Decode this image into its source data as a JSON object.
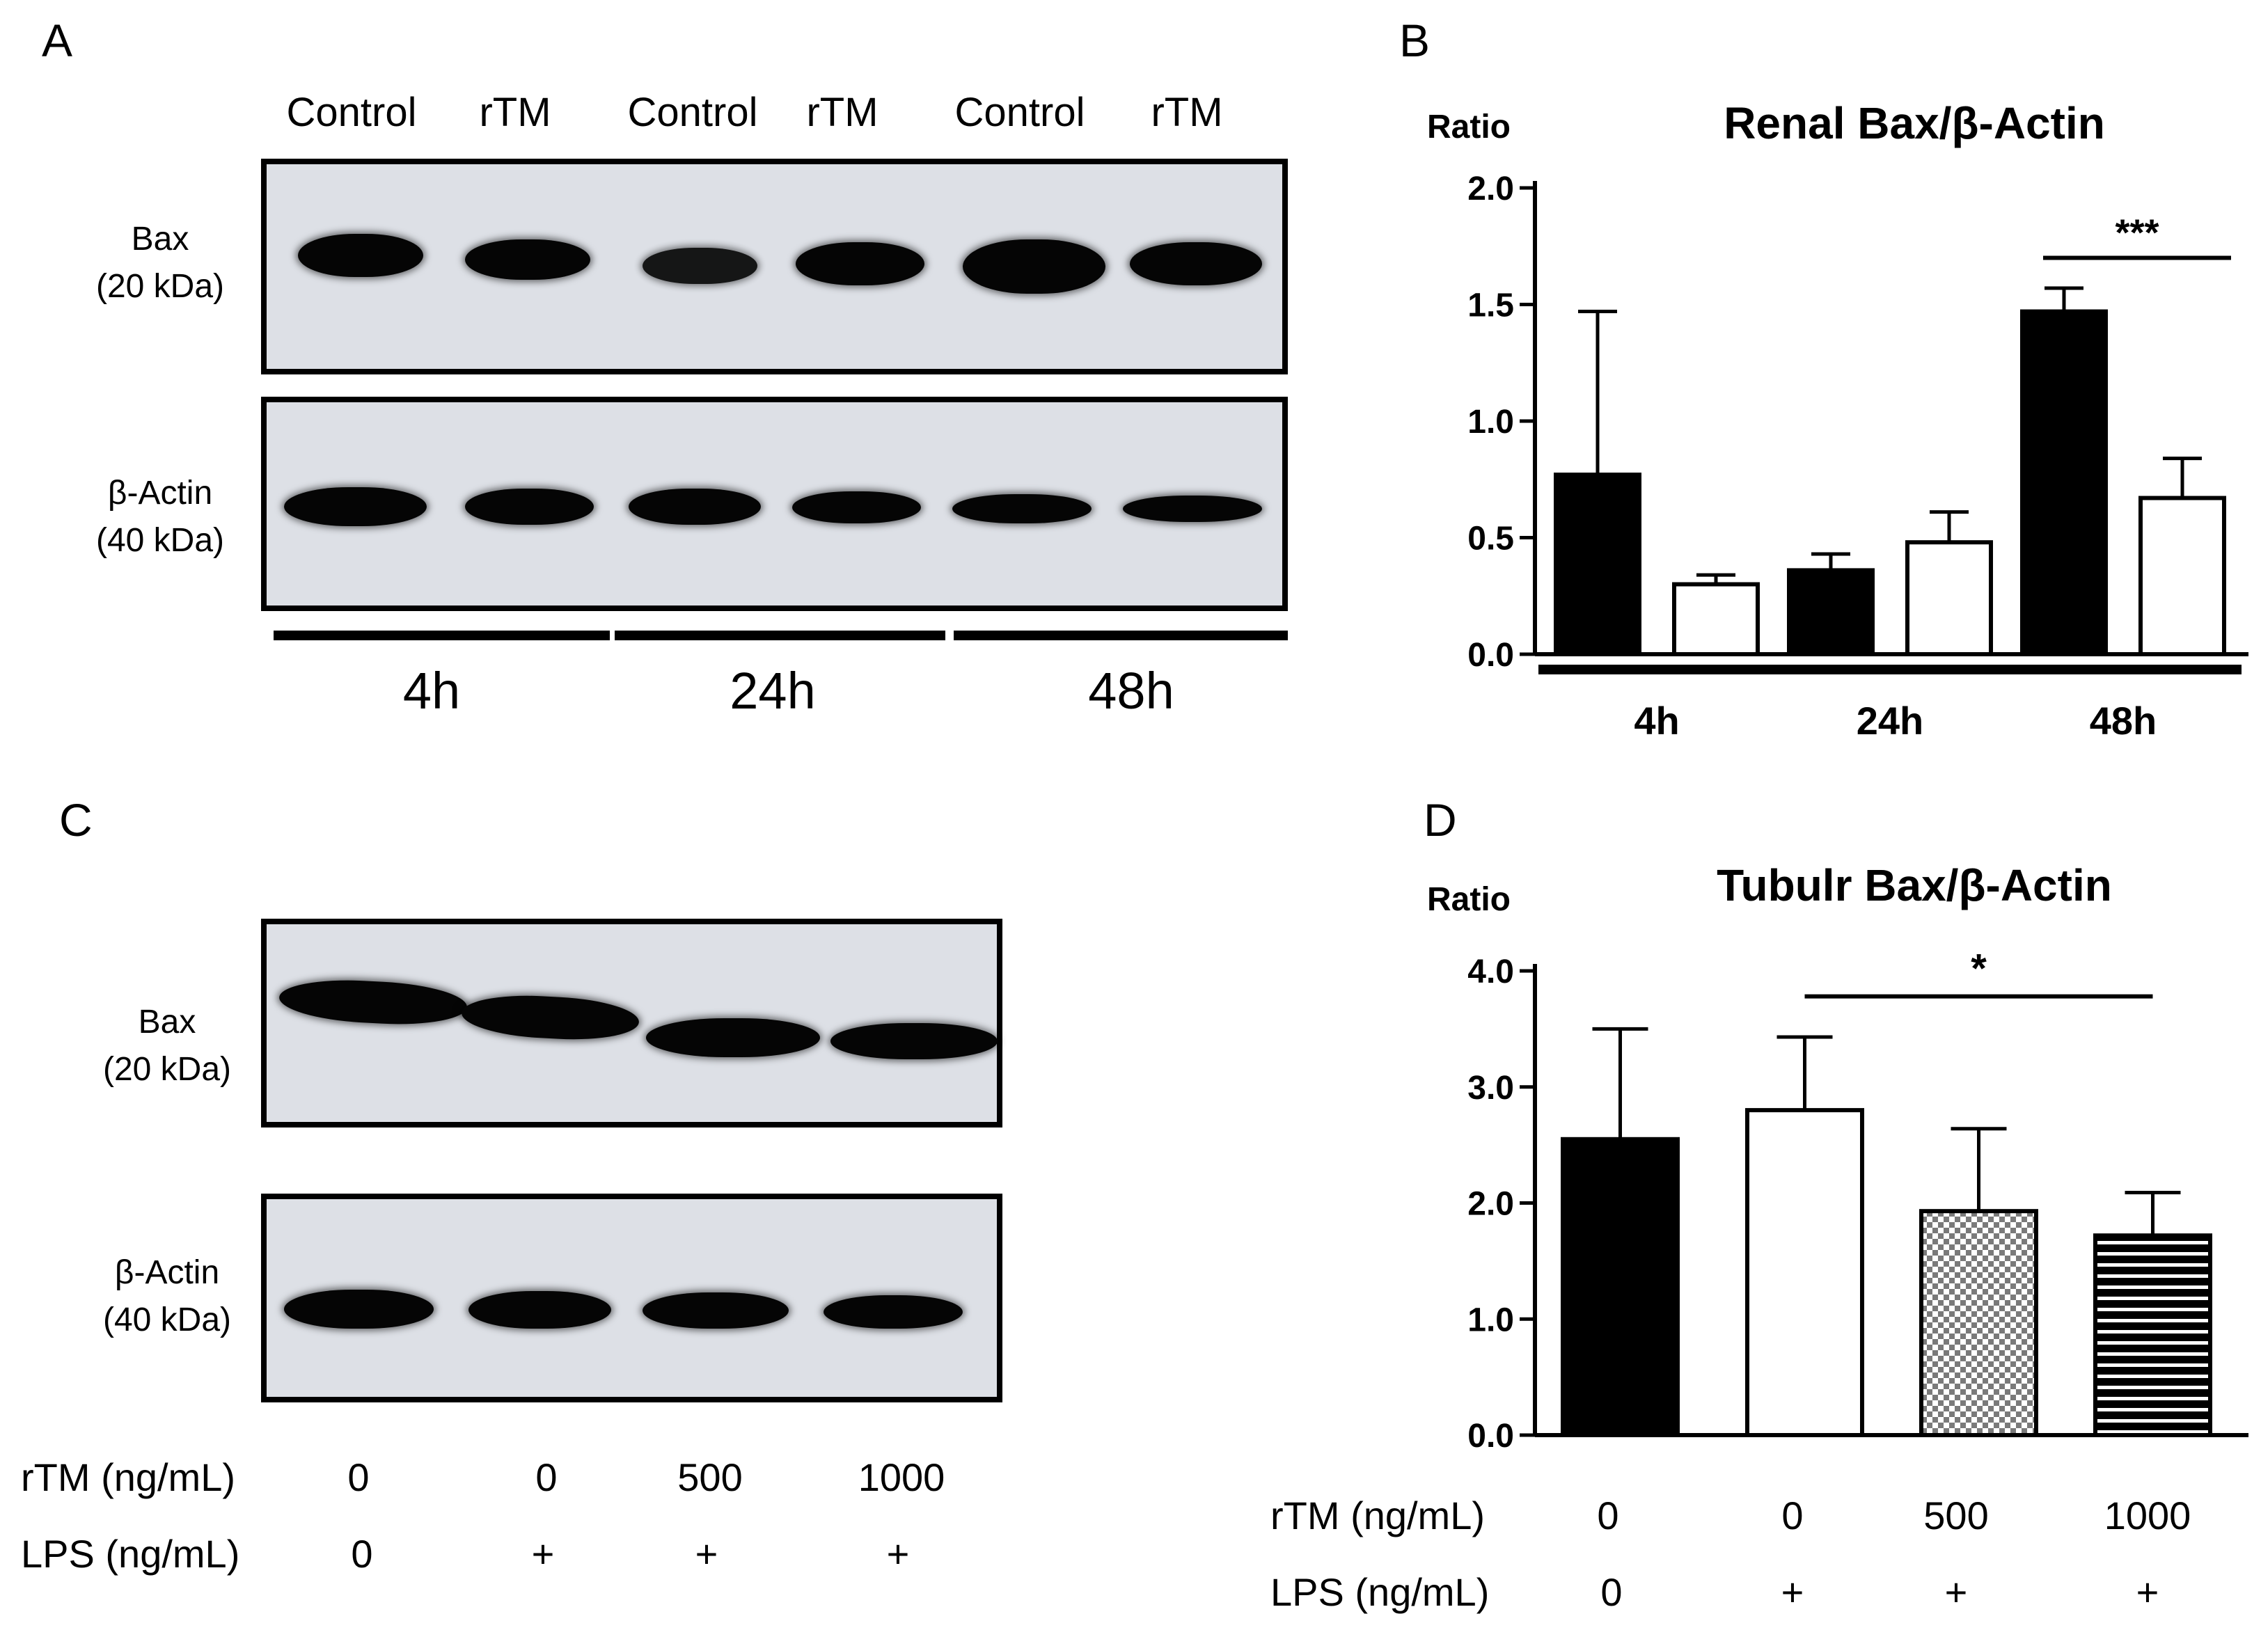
{
  "panels": {
    "A": {
      "letter": "A",
      "lane_labels": [
        "Control",
        "rTM",
        "Control",
        "rTM",
        "Control",
        "rTM"
      ],
      "blot_top_label": [
        "Bax",
        "(20 kDa)"
      ],
      "blot_bottom_label": [
        "β-Actin",
        "(40 kDa)"
      ],
      "time_labels": [
        "4h",
        "24h",
        "48h"
      ]
    },
    "B": {
      "letter": "B"
    },
    "C": {
      "letter": "C",
      "blot_top_label": [
        "Bax",
        "(20 kDa)"
      ],
      "blot_bottom_label": [
        "β-Actin",
        "(40 kDa)"
      ],
      "rtm_label": "rTM (ng/mL)",
      "lps_label": "LPS (ng/mL)",
      "rtm_values": [
        "0",
        "0",
        "500",
        "1000"
      ],
      "lps_values": [
        "0",
        "+",
        "+",
        "+"
      ]
    },
    "D": {
      "letter": "D",
      "rtm_label": "rTM (ng/mL)",
      "lps_label": "LPS (ng/mL)",
      "rtm_values": [
        "0",
        "0",
        "500",
        "1000"
      ],
      "lps_values": [
        "0",
        "+",
        "+",
        "+"
      ]
    }
  },
  "chart_data": [
    {
      "type": "bar",
      "title": "Renal Bax/β-Actin",
      "ylabel": "Ratio",
      "ylim": [
        0,
        2.0
      ],
      "yticks": [
        "0.0",
        "0.5",
        "1.0",
        "1.5",
        "2.0"
      ],
      "groups": [
        "4h",
        "24h",
        "48h"
      ],
      "series": [
        {
          "fill": "#000000",
          "values": [
            0.77,
            0.36,
            1.47
          ],
          "errors": [
            0.7,
            0.07,
            0.1
          ]
        },
        {
          "fill": "#ffffff",
          "values": [
            0.3,
            0.48,
            0.67
          ],
          "errors": [
            0.04,
            0.13,
            0.17
          ]
        }
      ],
      "significance": [
        {
          "label": "***",
          "group": "48h"
        }
      ]
    },
    {
      "type": "bar",
      "title": "Tubulr Bax/β-Actin",
      "ylabel": "Ratio",
      "ylim": [
        0,
        4.0
      ],
      "yticks": [
        "0.0",
        "1.0",
        "2.0",
        "3.0",
        "4.0"
      ],
      "bars": [
        {
          "value": 2.55,
          "error": 0.95,
          "pattern": "solid-black"
        },
        {
          "value": 2.8,
          "error": 0.63,
          "pattern": "white"
        },
        {
          "value": 1.93,
          "error": 0.71,
          "pattern": "checker"
        },
        {
          "value": 1.72,
          "error": 0.37,
          "pattern": "horizontal-stripes"
        }
      ],
      "significance": [
        {
          "label": "*",
          "from_bar": 1,
          "to_bar": 3
        }
      ]
    }
  ]
}
